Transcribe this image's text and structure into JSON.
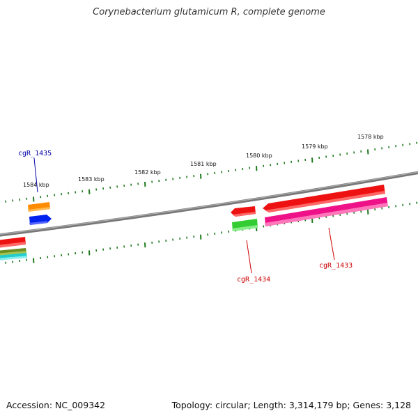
{
  "title": "Corynebacterium glutamicum R, complete genome",
  "footer": {
    "accession": "Accession: NC_009342",
    "summary": "Topology: circular; Length: 3,314,179 bp; Genes: 3,128"
  },
  "scale_labels": [
    "1584 kbp",
    "1583 kbp",
    "1582 kbp",
    "1581 kbp",
    "1580 kbp",
    "1579 kbp",
    "1578 kbp"
  ],
  "gene_labels": [
    {
      "text": "cgR_1435",
      "color": "#0000aa"
    },
    {
      "text": "cgR_1434",
      "color": "#cc0000"
    },
    {
      "text": "cgR_1433",
      "color": "#cc0000"
    }
  ],
  "colors": {
    "backbone": "#8a8a8a",
    "ticks": "#1f7a1f",
    "red": "#ee1111",
    "orange": "#ff8c00",
    "blue": "#0022ee",
    "green": "#33cc33",
    "magenta": "#ee1188",
    "olive": "#6b8e23",
    "cyan": "#22cccc"
  }
}
